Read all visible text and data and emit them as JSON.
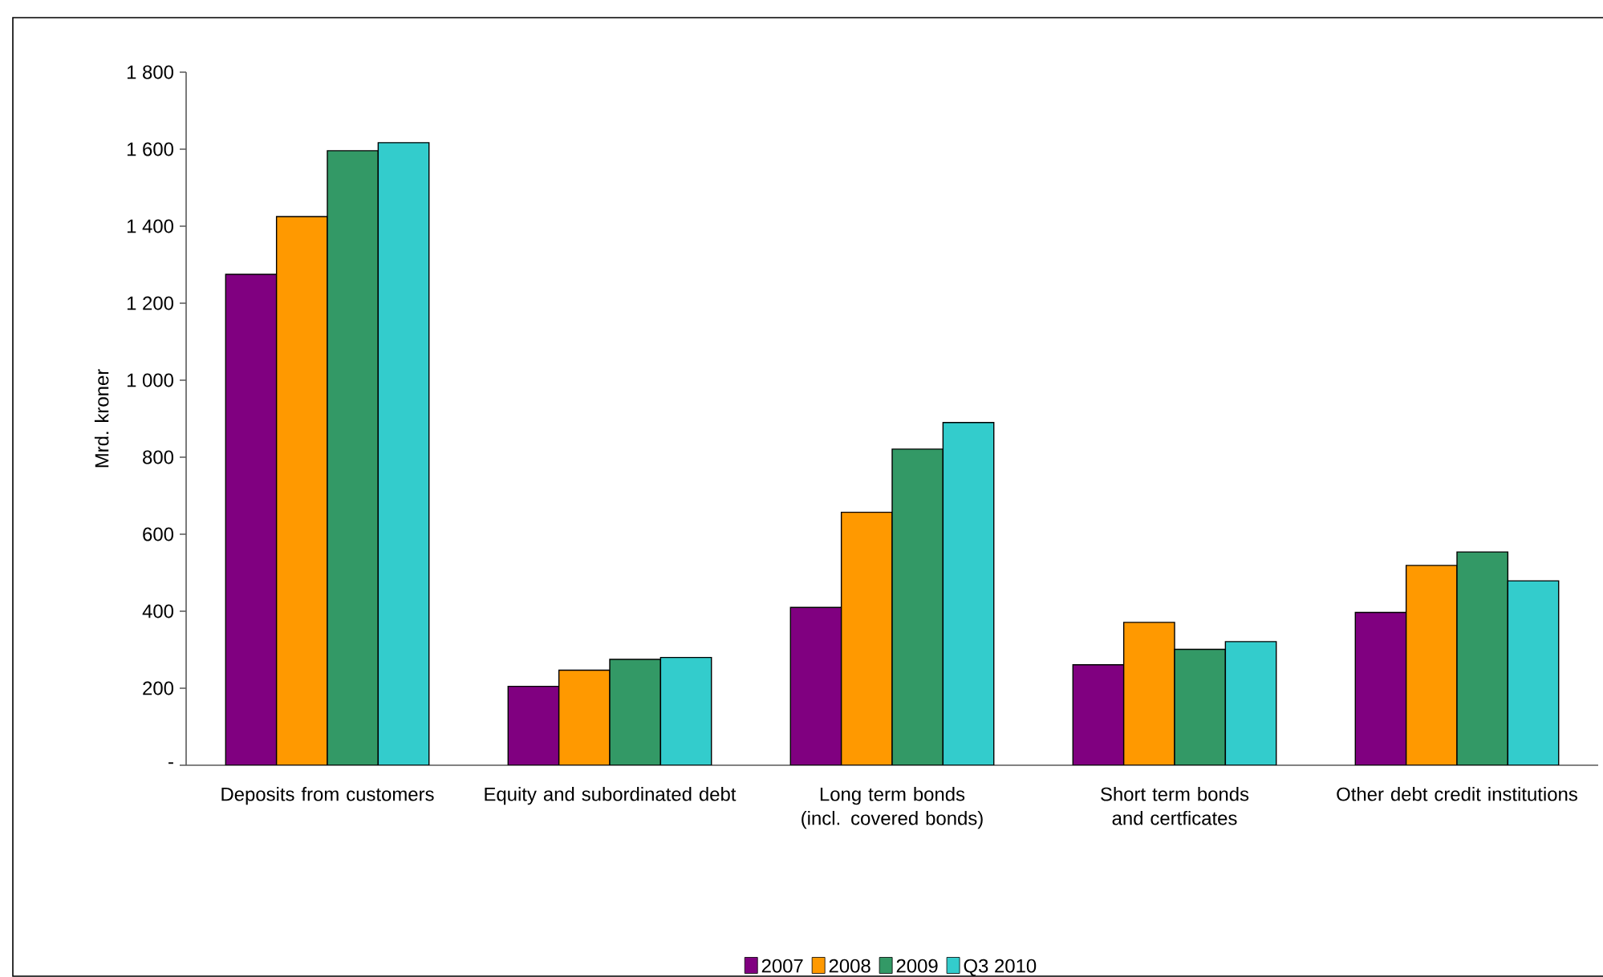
{
  "chart_data": {
    "type": "bar",
    "ylabel": "Mrd. kroner",
    "categories": [
      "Deposits from customers",
      "Equity and subordinated debt",
      "Long term bonds (incl. covered bonds)",
      "Short term bonds and certficates",
      "Other debt credit institutions"
    ],
    "series": [
      {
        "name": "2007",
        "color": "#800080",
        "values": [
          1275,
          205,
          410,
          261,
          397
        ]
      },
      {
        "name": "2008",
        "color": "#ff9900",
        "values": [
          1425,
          247,
          657,
          371,
          519
        ]
      },
      {
        "name": "2009",
        "color": "#339966",
        "values": [
          1596,
          275,
          821,
          301,
          554
        ]
      },
      {
        "name": "Q3 2010",
        "color": "#33cccc",
        "values": [
          1617,
          280,
          890,
          321,
          479
        ]
      }
    ],
    "ylim": [
      0,
      1800
    ],
    "yticks": [
      {
        "value": 0,
        "label": "-"
      },
      {
        "value": 200,
        "label": "200"
      },
      {
        "value": 400,
        "label": "400"
      },
      {
        "value": 600,
        "label": "600"
      },
      {
        "value": 800,
        "label": "800"
      },
      {
        "value": 1000,
        "label": "1 000"
      },
      {
        "value": 1200,
        "label": "1 200"
      },
      {
        "value": 1400,
        "label": "1 400"
      },
      {
        "value": 1600,
        "label": "1 600"
      },
      {
        "value": 1800,
        "label": "1 800"
      }
    ],
    "grid": false,
    "legend": "bottom"
  }
}
